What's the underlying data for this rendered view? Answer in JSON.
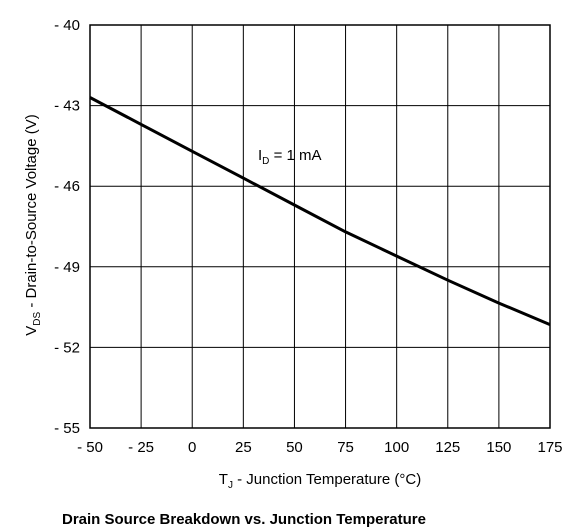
{
  "chart_data": {
    "type": "line",
    "title": "Drain Source Breakdown vs. Junction Temperature",
    "xlabel": {
      "main": "T",
      "sub": "J",
      "rest": " - Junction Temperature (°C)"
    },
    "ylabel": {
      "main": "V",
      "sub": "DS",
      "rest": " - Drain-to-Source Voltage (V)"
    },
    "xlim": [
      -50,
      175
    ],
    "ylim": [
      -55,
      -40
    ],
    "y_inverted": true,
    "grid": true,
    "x_ticks": [
      -50,
      -25,
      0,
      25,
      50,
      75,
      100,
      125,
      150,
      175
    ],
    "x_tick_labels": [
      "- 50",
      "- 25",
      "0",
      "25",
      "50",
      "75",
      "100",
      "125",
      "150",
      "175"
    ],
    "y_ticks": [
      -40,
      -43,
      -46,
      -49,
      -52,
      -55
    ],
    "y_tick_labels": [
      "- 40",
      "- 43",
      "- 46",
      "- 49",
      "- 52",
      "- 55"
    ],
    "annotation": {
      "main": "I",
      "sub": "D",
      "rest": " = 1 mA"
    },
    "series": [
      {
        "x": [
          -50,
          -25,
          0,
          25,
          50,
          75,
          100,
          125,
          150,
          175
        ],
        "y": [
          -42.7,
          -43.7,
          -44.7,
          -45.7,
          -46.7,
          -47.7,
          -48.6,
          -49.5,
          -50.35,
          -51.15
        ]
      }
    ]
  }
}
